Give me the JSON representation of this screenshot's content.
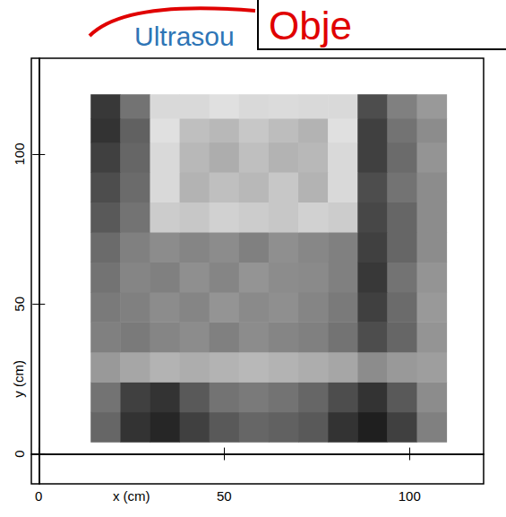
{
  "chart_data": {
    "type": "heatmap",
    "title": "Ultrasou",
    "annotation": "Obje",
    "xlabel": "x (cm)",
    "ylabel": "y (cm)",
    "xlim": [
      -2,
      120
    ],
    "ylim": [
      -10,
      132
    ],
    "xticks": [
      0,
      50,
      100
    ],
    "yticks": [
      0,
      50,
      100
    ],
    "grid": false,
    "x_edges": [
      14,
      22,
      30,
      38,
      46,
      54,
      62,
      70,
      78,
      86,
      94,
      102,
      110
    ],
    "y_edges": [
      4,
      14,
      24,
      34,
      44,
      54,
      64,
      74,
      84,
      94,
      104,
      112,
      120
    ],
    "value_range": [
      0,
      100
    ],
    "cells": [
      [
        40,
        20,
        15,
        25,
        35,
        40,
        38,
        35,
        20,
        12,
        25,
        50
      ],
      [
        45,
        25,
        20,
        35,
        45,
        48,
        45,
        40,
        30,
        20,
        35,
        55
      ],
      [
        60,
        65,
        70,
        68,
        70,
        72,
        70,
        68,
        65,
        55,
        60,
        62
      ],
      [
        50,
        48,
        52,
        55,
        50,
        55,
        52,
        50,
        45,
        30,
        40,
        58
      ],
      [
        48,
        50,
        55,
        52,
        58,
        54,
        56,
        52,
        48,
        25,
        42,
        60
      ],
      [
        45,
        52,
        50,
        56,
        52,
        58,
        55,
        54,
        50,
        22,
        45,
        58
      ],
      [
        42,
        50,
        55,
        52,
        55,
        50,
        56,
        53,
        50,
        25,
        40,
        55
      ],
      [
        35,
        45,
        80,
        78,
        82,
        80,
        78,
        82,
        80,
        28,
        40,
        55
      ],
      [
        30,
        42,
        85,
        70,
        75,
        72,
        78,
        70,
        85,
        30,
        45,
        55
      ],
      [
        25,
        40,
        85,
        72,
        68,
        75,
        70,
        72,
        85,
        25,
        42,
        58
      ],
      [
        20,
        38,
        88,
        75,
        72,
        78,
        74,
        70,
        88,
        25,
        45,
        55
      ],
      [
        22,
        45,
        85,
        85,
        88,
        85,
        86,
        85,
        85,
        30,
        50,
        60
      ]
    ]
  }
}
